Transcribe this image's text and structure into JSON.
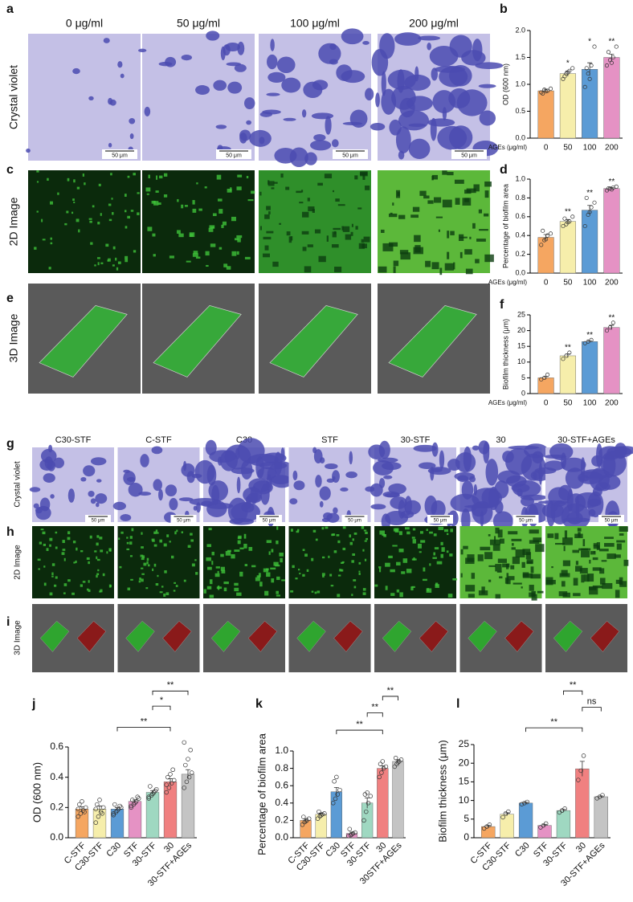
{
  "panel_labels": [
    "a",
    "b",
    "c",
    "d",
    "e",
    "f",
    "g",
    "h",
    "i",
    "j",
    "k",
    "l"
  ],
  "top_columns": [
    "0 μg/ml",
    "50 μg/ml",
    "100 μg/ml",
    "200 μg/ml"
  ],
  "top_rows": [
    "Crystal violet",
    "2D Image",
    "3D Image"
  ],
  "scale_bar": "50 μm",
  "bottom_columns": [
    "C30-STF",
    "C-STF",
    "C30",
    "STF",
    "30-STF",
    "30",
    "30-STF+AGEs"
  ],
  "bottom_rows": [
    "Crystal violet",
    "2D Image",
    "3D Image"
  ],
  "chart_data": [
    {
      "type": "bar",
      "ylabel": "OD (600 nm)",
      "xlabel": "AGEs (μg/ml)",
      "categories": [
        "0",
        "50",
        "100",
        "200"
      ],
      "values": [
        0.88,
        1.2,
        1.28,
        1.5
      ],
      "errors": [
        0.03,
        0.05,
        0.12,
        0.06
      ],
      "points": [
        [
          0.85,
          0.9,
          0.88,
          0.92,
          0.83,
          0.87
        ],
        [
          1.1,
          1.2,
          1.25,
          1.3,
          1.15,
          1.22
        ],
        [
          0.95,
          1.2,
          1.35,
          1.7,
          1.3,
          1.1
        ],
        [
          1.35,
          1.45,
          1.5,
          1.7,
          1.6,
          1.4
        ]
      ],
      "colors": [
        "#f5a661",
        "#f6eeab",
        "#5b9bd5",
        "#e592c4"
      ],
      "stars": [
        null,
        "*",
        "*",
        "**"
      ],
      "ylim": [
        0,
        2
      ],
      "yticks": [
        {
          "value": 0,
          "label": "0.0"
        },
        0.5,
        {
          "value": 1,
          "label": "1.0"
        },
        1.5,
        {
          "value": 2,
          "label": "2.0"
        }
      ]
    },
    {
      "type": "bar",
      "ylabel": "Percentage of biofilm area",
      "xlabel": "AGEs (μg/ml)",
      "categories": [
        "0",
        "50",
        "100",
        "200"
      ],
      "values": [
        0.38,
        0.55,
        0.67,
        0.9
      ],
      "errors": [
        0.03,
        0.02,
        0.05,
        0.01
      ],
      "points": [
        [
          0.3,
          0.35,
          0.4,
          0.42,
          0.45,
          0.36
        ],
        [
          0.5,
          0.52,
          0.55,
          0.6,
          0.58,
          0.54
        ],
        [
          0.5,
          0.62,
          0.7,
          0.75,
          0.8,
          0.65
        ],
        [
          0.88,
          0.9,
          0.91,
          0.92,
          0.9,
          0.89
        ]
      ],
      "colors": [
        "#f5a661",
        "#f6eeab",
        "#5b9bd5",
        "#e592c4"
      ],
      "stars": [
        null,
        "**",
        "**",
        "**"
      ],
      "ylim": [
        0,
        1
      ],
      "yticks": [
        {
          "value": 0,
          "label": "0.0"
        },
        0.2,
        0.4,
        0.6,
        0.8,
        {
          "value": 1,
          "label": "1.0"
        }
      ]
    },
    {
      "type": "bar",
      "ylabel": "Biofilm thickness (μm)",
      "xlabel": "AGEs (μg/ml)",
      "categories": [
        "0",
        "50",
        "100",
        "200"
      ],
      "values": [
        5,
        12,
        16.5,
        21
      ],
      "errors": [
        0.4,
        0.6,
        0.3,
        0.7
      ],
      "points": [
        [
          4.5,
          5,
          6
        ],
        [
          11,
          12,
          13
        ],
        [
          16,
          16.5,
          17
        ],
        [
          20,
          21,
          22.5
        ]
      ],
      "colors": [
        "#f5a661",
        "#f6eeab",
        "#5b9bd5",
        "#e592c4"
      ],
      "stars": [
        null,
        "**",
        "**",
        "**"
      ],
      "ylim": [
        0,
        25
      ],
      "yticks": [
        0,
        5,
        10,
        15,
        20,
        25
      ]
    },
    {
      "type": "bar",
      "ylabel": "OD (600 nm)",
      "categories": [
        "C-STF",
        "C30-STF",
        "C30",
        "STF",
        "30-STF",
        "30",
        "30-STF+AGEs"
      ],
      "values": [
        0.19,
        0.19,
        0.19,
        0.24,
        0.3,
        0.37,
        0.42
      ],
      "errors": [
        0.015,
        0.02,
        0.01,
        0.01,
        0.012,
        0.02,
        0.03
      ],
      "points": [
        [
          0.14,
          0.16,
          0.18,
          0.2,
          0.22,
          0.24,
          0.17,
          0.19
        ],
        [
          0.1,
          0.14,
          0.17,
          0.2,
          0.22,
          0.25,
          0.16,
          0.19
        ],
        [
          0.15,
          0.17,
          0.19,
          0.2,
          0.22,
          0.18,
          0.21,
          0.16
        ],
        [
          0.2,
          0.22,
          0.24,
          0.26,
          0.25,
          0.23,
          0.27,
          0.21
        ],
        [
          0.26,
          0.28,
          0.3,
          0.32,
          0.34,
          0.29,
          0.31,
          0.27
        ],
        [
          0.3,
          0.33,
          0.36,
          0.38,
          0.4,
          0.42,
          0.45,
          0.35
        ],
        [
          0.33,
          0.37,
          0.4,
          0.43,
          0.48,
          0.52,
          0.58,
          0.63
        ]
      ],
      "colors": [
        "#f5a661",
        "#f6eeab",
        "#5b9bd5",
        "#e592c4",
        "#9fd8c1",
        "#f08080",
        "#c4c4c4"
      ],
      "brackets": [
        {
          "from": 2,
          "to": 5,
          "y": 0.73,
          "label": "**"
        },
        {
          "from": 4,
          "to": 5,
          "y": 0.87,
          "label": "*"
        },
        {
          "from": 4,
          "to": 6,
          "y": 0.97,
          "label": "**"
        }
      ],
      "ylim": [
        0,
        0.6
      ],
      "yticks": [
        {
          "value": 0,
          "label": "0.0"
        },
        0.2,
        0.4,
        0.6
      ]
    },
    {
      "type": "bar",
      "ylabel": "Percentage of biofilm area",
      "categories": [
        "C-STF",
        "C30-STF",
        "C30",
        "STF",
        "30-STF",
        "30",
        "30STF+AGEs"
      ],
      "values": [
        0.2,
        0.27,
        0.53,
        0.05,
        0.4,
        0.8,
        0.88
      ],
      "errors": [
        0.02,
        0.015,
        0.05,
        0.015,
        0.06,
        0.03,
        0.02
      ],
      "points": [
        [
          0.15,
          0.18,
          0.2,
          0.22,
          0.24,
          0.19
        ],
        [
          0.22,
          0.25,
          0.27,
          0.28,
          0.3,
          0.26
        ],
        [
          0.4,
          0.45,
          0.5,
          0.55,
          0.65,
          0.7
        ],
        [
          0.02,
          0.03,
          0.05,
          0.06,
          0.1,
          0.04
        ],
        [
          0.2,
          0.3,
          0.4,
          0.48,
          0.5,
          0.52
        ],
        [
          0.7,
          0.75,
          0.8,
          0.82,
          0.85,
          0.88
        ],
        [
          0.82,
          0.85,
          0.88,
          0.9,
          0.92,
          0.87
        ]
      ],
      "colors": [
        "#f5a661",
        "#f6eeab",
        "#5b9bd5",
        "#e592c4",
        "#9fd8c1",
        "#f08080",
        "#c4c4c4"
      ],
      "brackets": [
        {
          "from": 2,
          "to": 5,
          "y": 1.24,
          "label": "**"
        },
        {
          "from": 4,
          "to": 5,
          "y": 1.44,
          "label": "**"
        },
        {
          "from": 5,
          "to": 6,
          "y": 1.63,
          "label": "**"
        }
      ],
      "ylim": [
        0,
        1
      ],
      "yticks": [
        {
          "value": 0,
          "label": "0.0"
        },
        0.2,
        0.4,
        0.6,
        0.8,
        {
          "value": 1,
          "label": "1.0"
        }
      ]
    },
    {
      "type": "bar",
      "ylabel": "Biofilm thickness (μm)",
      "categories": [
        "C-STF",
        "C30-STF",
        "C30",
        "STF",
        "30-STF",
        "30",
        "30-STF+AGEs"
      ],
      "values": [
        3,
        6.3,
        9.3,
        3.3,
        7.3,
        18.5,
        11
      ],
      "errors": [
        0.3,
        0.4,
        0.2,
        0.3,
        0.3,
        2,
        0.2
      ],
      "points": [
        [
          2.5,
          3,
          3.5
        ],
        [
          5.5,
          6.5,
          7
        ],
        [
          9,
          9.3,
          9.6
        ],
        [
          2.8,
          3.3,
          3.8
        ],
        [
          6.8,
          7.3,
          7.8
        ],
        [
          15.5,
          18,
          22
        ],
        [
          10.6,
          11,
          11.4
        ]
      ],
      "colors": [
        "#f5a661",
        "#f6eeab",
        "#5b9bd5",
        "#e592c4",
        "#9fd8c1",
        "#f08080",
        "#c4c4c4"
      ],
      "brackets": [
        {
          "from": 2,
          "to": 5,
          "y": 29.5,
          "label": "**"
        },
        {
          "from": 5,
          "to": 6,
          "y": 35,
          "label": "ns"
        },
        {
          "from": 4,
          "to": 5,
          "y": 39.4,
          "label": "**"
        }
      ],
      "ylim": [
        0,
        25
      ],
      "yticks": [
        0,
        5,
        10,
        15,
        20,
        25
      ]
    }
  ]
}
